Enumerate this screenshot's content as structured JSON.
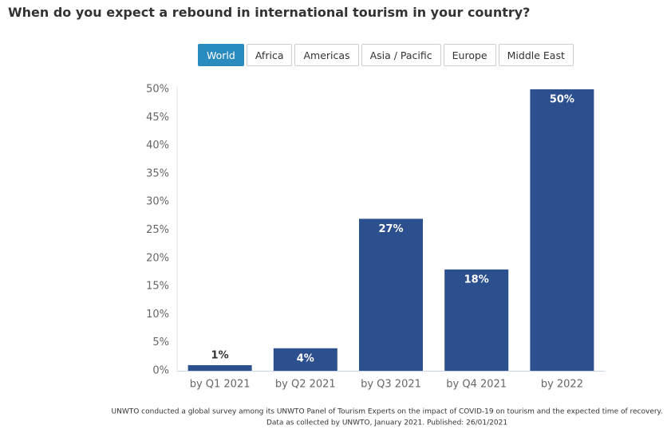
{
  "chart_data": {
    "type": "bar",
    "title": "When do you expect a rebound in international tourism in your country?",
    "categories": [
      "by Q1 2021",
      "by Q2 2021",
      "by Q3 2021",
      "by Q4 2021",
      "by 2022"
    ],
    "values": [
      1,
      4,
      27,
      18,
      50
    ],
    "value_labels": [
      "1%",
      "4%",
      "27%",
      "18%",
      "50%"
    ],
    "color": "#2c4f8e",
    "ylim": [
      0,
      50
    ],
    "yticks": [
      {
        "value": 0,
        "label": "0%"
      },
      {
        "value": 5,
        "label": "5%"
      },
      {
        "value": 10,
        "label": "10%"
      },
      {
        "value": 15,
        "label": "15%"
      },
      {
        "value": 20,
        "label": "20%"
      },
      {
        "value": 25,
        "label": "25%"
      },
      {
        "value": 30,
        "label": "30%"
      },
      {
        "value": 35,
        "label": "35%"
      },
      {
        "value": 40,
        "label": "40%"
      },
      {
        "value": 45,
        "label": "45%"
      },
      {
        "value": 50,
        "label": "50%"
      }
    ],
    "grid": false,
    "notes": [
      "UNWTO conducted a global survey among its UNWTO Panel of Tourism Experts on the impact of COVID-19 on tourism and the expected time of recovery.",
      "Data as collected by UNWTO, January 2021. Published: 26/01/2021"
    ]
  },
  "tabs": {
    "items": [
      "World",
      "Africa",
      "Americas",
      "Asia / Pacific",
      "Europe",
      "Middle East"
    ],
    "active": 0
  }
}
